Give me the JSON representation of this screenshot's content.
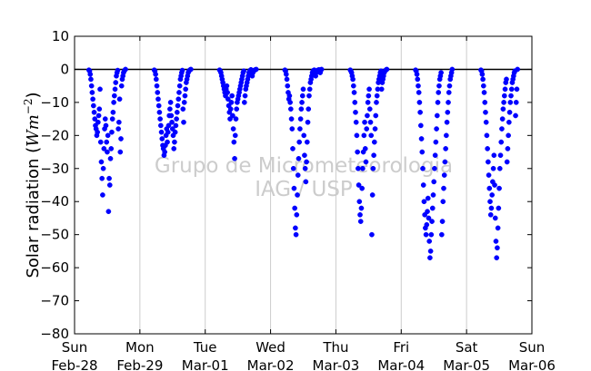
{
  "chart_data": {
    "type": "scatter",
    "ylabel": "Solar radiation (W m^-2)",
    "ylabel_prefix": "Solar radiation (",
    "ylabel_unit_w": "W",
    "ylabel_unit_m": "m",
    "ylabel_unit_exp": "−2",
    "ylabel_suffix": ")",
    "ylim": [
      -80,
      10
    ],
    "yticks": [
      10,
      0,
      -10,
      -20,
      -30,
      -40,
      -50,
      -60,
      -70,
      -80
    ],
    "xlim": [
      0,
      7
    ],
    "xtick_positions": [
      0,
      1,
      2,
      3,
      4,
      5,
      6,
      7
    ],
    "xtick_labels": [
      [
        "Sun",
        "Feb-28"
      ],
      [
        "Mon",
        "Feb-29"
      ],
      [
        "Tue",
        "Mar-01"
      ],
      [
        "Wed",
        "Mar-02"
      ],
      [
        "Thu",
        "Mar-03"
      ],
      [
        "Fri",
        "Mar-04"
      ],
      [
        "Sat",
        "Mar-05"
      ],
      [
        "Sun",
        "Mar-06"
      ]
    ],
    "vertical_grid": true,
    "zero_line": true,
    "watermark_lines": [
      "Grupo de Micrometeorologia",
      "IAG / USP"
    ],
    "marker_color": "#0000ff",
    "series": [
      {
        "x": [
          0.22,
          0.23,
          0.24,
          0.25,
          0.26,
          0.27,
          0.28,
          0.29,
          0.3,
          0.31,
          0.32,
          0.33,
          0.34,
          0.35,
          0.36,
          0.37,
          0.38,
          0.39,
          0.4,
          0.41,
          0.42,
          0.43,
          0.44,
          0.45,
          0.46,
          0.47,
          0.48,
          0.49,
          0.5,
          0.51,
          0.52,
          0.53,
          0.54,
          0.55,
          0.56,
          0.57,
          0.58,
          0.59,
          0.6,
          0.61,
          0.62,
          0.63,
          0.64,
          0.65,
          0.66,
          0.67,
          0.68,
          0.69,
          0.7,
          0.71,
          0.72,
          0.73,
          0.74,
          0.75,
          0.76,
          0.77,
          0.78
        ],
        "y": [
          -0.2,
          -0.5,
          -1.5,
          -3,
          -5,
          -7,
          -9,
          -11,
          -13,
          -15,
          -17,
          -18,
          -20,
          -19,
          -16,
          -14,
          -12,
          -6,
          -22,
          -28,
          -33,
          -38,
          -30,
          -24,
          -18,
          -15,
          -17,
          -22,
          -25,
          -20,
          -43,
          -33,
          -35,
          -27,
          -24,
          -19,
          -15,
          -13,
          -10,
          -8,
          -6,
          -4,
          -2,
          -1,
          -0.3,
          -18,
          -16,
          -9,
          -25,
          -21,
          -5,
          -3,
          -2,
          -1,
          -0.5,
          -0.2,
          0
        ]
      },
      {
        "x": [
          1.22,
          1.23,
          1.24,
          1.25,
          1.26,
          1.27,
          1.28,
          1.29,
          1.3,
          1.31,
          1.32,
          1.33,
          1.34,
          1.35,
          1.36,
          1.37,
          1.38,
          1.39,
          1.4,
          1.41,
          1.42,
          1.43,
          1.44,
          1.45,
          1.46,
          1.47,
          1.48,
          1.49,
          1.5,
          1.51,
          1.52,
          1.53,
          1.54,
          1.55,
          1.56,
          1.57,
          1.58,
          1.59,
          1.6,
          1.61,
          1.62,
          1.63,
          1.64,
          1.65,
          1.66,
          1.67,
          1.68,
          1.69,
          1.7,
          1.71,
          1.72,
          1.73,
          1.74,
          1.75,
          1.76,
          1.77,
          1.78
        ],
        "y": [
          -0.2,
          -0.5,
          -1.5,
          -3,
          -5,
          -7,
          -9,
          -11,
          -13,
          -15,
          -17,
          -19,
          -21,
          -23,
          -24,
          -26,
          -25,
          -23,
          -20,
          -18,
          -22,
          -19,
          -17,
          -14,
          -12,
          -10,
          -14,
          -16,
          -18,
          -20,
          -24,
          -22,
          -19,
          -17,
          -15,
          -13,
          -11,
          -9,
          -7,
          -5,
          -3,
          -2,
          -1,
          -0.3,
          -12,
          -16,
          -10,
          -8,
          -6,
          -4,
          -3,
          -2,
          -1,
          -0.5,
          -0.3,
          -0.1,
          0
        ]
      },
      {
        "x": [
          2.22,
          2.23,
          2.24,
          2.25,
          2.26,
          2.27,
          2.28,
          2.29,
          2.3,
          2.31,
          2.32,
          2.33,
          2.34,
          2.35,
          2.36,
          2.37,
          2.38,
          2.39,
          2.4,
          2.41,
          2.42,
          2.43,
          2.44,
          2.45,
          2.46,
          2.47,
          2.48,
          2.49,
          2.5,
          2.51,
          2.52,
          2.53,
          2.54,
          2.55,
          2.56,
          2.57,
          2.58,
          2.59,
          2.6,
          2.61,
          2.62,
          2.63,
          2.64,
          2.65,
          2.66,
          2.67,
          2.68,
          2.69,
          2.7,
          2.71,
          2.72,
          2.73,
          2.74,
          2.75,
          2.76,
          2.77,
          2.78
        ],
        "y": [
          -0.2,
          -0.5,
          -1,
          -2,
          -3,
          -4,
          -5,
          -6,
          -7,
          -8,
          -6,
          -5,
          -7,
          -9,
          -11,
          -13,
          -15,
          -12,
          -10,
          -8,
          -14,
          -18,
          -22,
          -27,
          -20,
          -15,
          -12,
          -10,
          -9,
          -8,
          -7,
          -6,
          -5,
          -4,
          -3,
          -2,
          -1,
          -0.5,
          -10,
          -8,
          -6,
          -5,
          -4,
          -3,
          -2,
          -1,
          -0.5,
          -0.3,
          -0.1,
          -1,
          -2,
          -1,
          -0.5,
          -0.3,
          -0.2,
          -0.1,
          0
        ]
      },
      {
        "x": [
          3.22,
          3.23,
          3.24,
          3.25,
          3.26,
          3.27,
          3.28,
          3.29,
          3.3,
          3.31,
          3.32,
          3.33,
          3.34,
          3.35,
          3.36,
          3.37,
          3.38,
          3.39,
          3.4,
          3.41,
          3.42,
          3.43,
          3.44,
          3.45,
          3.46,
          3.47,
          3.48,
          3.49,
          3.5,
          3.51,
          3.52,
          3.53,
          3.54,
          3.55,
          3.56,
          3.57,
          3.58,
          3.59,
          3.6,
          3.61,
          3.62,
          3.63,
          3.64,
          3.65,
          3.66,
          3.67,
          3.68,
          3.69,
          3.7,
          3.71,
          3.72,
          3.73,
          3.74,
          3.75,
          3.76,
          3.77,
          3.78
        ],
        "y": [
          -0.2,
          -0.5,
          -1.5,
          -3,
          -5,
          -7,
          -9,
          -8,
          -10,
          -12,
          -15,
          -18,
          -24,
          -30,
          -36,
          -42,
          -48,
          -50,
          -44,
          -38,
          -32,
          -27,
          -22,
          -18,
          -15,
          -12,
          -10,
          -8,
          -6,
          -20,
          -26,
          -30,
          -34,
          -28,
          -22,
          -16,
          -12,
          -8,
          -6,
          -4,
          -3,
          -2,
          -1,
          -0.5,
          -0.3,
          -0.2,
          -1,
          -2,
          -1,
          -0.5,
          -0.3,
          -0.2,
          -0.1,
          -0.5,
          -1,
          -0.3,
          0
        ]
      },
      {
        "x": [
          4.22,
          4.23,
          4.24,
          4.25,
          4.26,
          4.27,
          4.28,
          4.29,
          4.3,
          4.31,
          4.32,
          4.33,
          4.34,
          4.35,
          4.36,
          4.37,
          4.38,
          4.39,
          4.4,
          4.41,
          4.42,
          4.43,
          4.44,
          4.45,
          4.46,
          4.47,
          4.48,
          4.49,
          4.5,
          4.51,
          4.52,
          4.53,
          4.54,
          4.55,
          4.56,
          4.57,
          4.58,
          4.59,
          4.6,
          4.61,
          4.62,
          4.63,
          4.64,
          4.65,
          4.66,
          4.67,
          4.68,
          4.69,
          4.7,
          4.71,
          4.72,
          4.73,
          4.74,
          4.75,
          4.76,
          4.77,
          4.78
        ],
        "y": [
          -0.2,
          -0.5,
          -1,
          -2,
          -3,
          -5,
          -7,
          -10,
          -13,
          -16,
          -20,
          -25,
          -30,
          -35,
          -40,
          -44,
          -46,
          -42,
          -36,
          -30,
          -25,
          -20,
          -16,
          -24,
          -28,
          -18,
          -14,
          -10,
          -8,
          -6,
          -12,
          -16,
          -20,
          -50,
          -38,
          -30,
          -26,
          -22,
          -18,
          -14,
          -10,
          -8,
          -6,
          -4,
          -3,
          -2,
          -1,
          -0.5,
          -6,
          -4,
          -3,
          -2,
          -1,
          -0.5,
          -0.3,
          -0.1,
          0
        ]
      },
      {
        "x": [
          5.22,
          5.23,
          5.24,
          5.25,
          5.26,
          5.27,
          5.28,
          5.29,
          5.3,
          5.31,
          5.32,
          5.33,
          5.34,
          5.35,
          5.36,
          5.37,
          5.38,
          5.39,
          5.4,
          5.41,
          5.42,
          5.43,
          5.44,
          5.45,
          5.46,
          5.47,
          5.48,
          5.49,
          5.5,
          5.51,
          5.52,
          5.53,
          5.54,
          5.55,
          5.56,
          5.57,
          5.58,
          5.59,
          5.6,
          5.61,
          5.62,
          5.63,
          5.64,
          5.65,
          5.66,
          5.67,
          5.68,
          5.69,
          5.7,
          5.71,
          5.72,
          5.73,
          5.74,
          5.75,
          5.76,
          5.77,
          5.78
        ],
        "y": [
          -0.2,
          -0.5,
          -1.5,
          -3,
          -5,
          -7,
          -10,
          -13,
          -17,
          -21,
          -25,
          -30,
          -35,
          -40,
          -44,
          -48,
          -50,
          -47,
          -43,
          -39,
          -45,
          -52,
          -57,
          -55,
          -50,
          -46,
          -42,
          -38,
          -34,
          -30,
          -26,
          -22,
          -18,
          -14,
          -10,
          -7,
          -5,
          -3,
          -2,
          -1,
          -50,
          -46,
          -40,
          -36,
          -32,
          -28,
          -24,
          -20,
          -16,
          -13,
          -10,
          -7,
          -5,
          -3,
          -2,
          -1,
          0
        ]
      },
      {
        "x": [
          6.22,
          6.23,
          6.24,
          6.25,
          6.26,
          6.27,
          6.28,
          6.29,
          6.3,
          6.31,
          6.32,
          6.33,
          6.34,
          6.35,
          6.36,
          6.37,
          6.38,
          6.39,
          6.4,
          6.41,
          6.42,
          6.43,
          6.44,
          6.45,
          6.46,
          6.47,
          6.48,
          6.49,
          6.5,
          6.51,
          6.52,
          6.53,
          6.54,
          6.55,
          6.56,
          6.57,
          6.58,
          6.59,
          6.6,
          6.61,
          6.62,
          6.63,
          6.64,
          6.65,
          6.66,
          6.67,
          6.68,
          6.69,
          6.7,
          6.71,
          6.72,
          6.73,
          6.74,
          6.75,
          6.76,
          6.77,
          6.78
        ],
        "y": [
          -0.2,
          -0.5,
          -1.5,
          -3,
          -5,
          -7,
          -10,
          -13,
          -16,
          -20,
          -24,
          -28,
          -32,
          -36,
          -40,
          -44,
          -42,
          -38,
          -34,
          -30,
          -26,
          -35,
          -45,
          -52,
          -57,
          -54,
          -48,
          -42,
          -36,
          -30,
          -26,
          -22,
          -18,
          -15,
          -12,
          -10,
          -8,
          -6,
          -4,
          -3,
          -28,
          -24,
          -20,
          -16,
          -13,
          -10,
          -8,
          -6,
          -4,
          -3,
          -2,
          -1,
          -0.5,
          -14,
          -10,
          -6,
          0
        ]
      }
    ]
  }
}
